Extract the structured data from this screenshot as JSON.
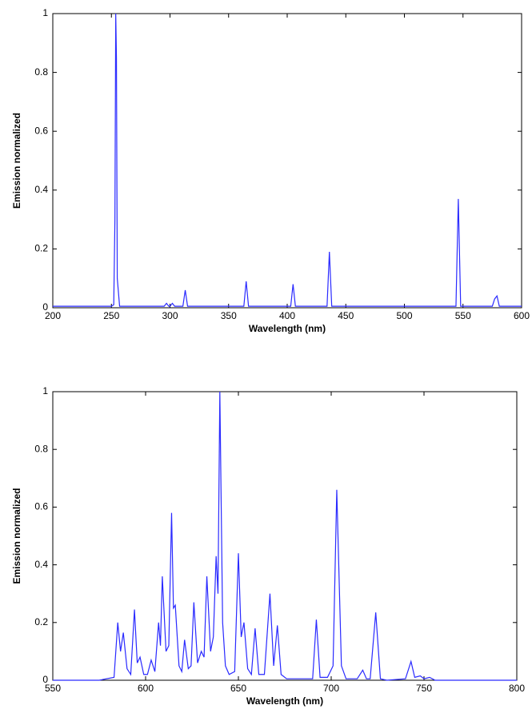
{
  "chart_data": [
    {
      "type": "line",
      "xlabel": "Wavelength (nm)",
      "ylabel": "Emission normalized",
      "xlim": [
        200,
        600
      ],
      "xticks": [
        200,
        250,
        300,
        350,
        400,
        450,
        500,
        550,
        600
      ],
      "ylim": [
        0,
        1
      ],
      "yticks": [
        0,
        0.2,
        0.4,
        0.6,
        0.8,
        1
      ],
      "series": [
        {
          "color": "#2a2aff",
          "x": [
            200,
            250,
            252,
            253,
            253.7,
            254.3,
            255,
            257,
            295,
            297,
            299,
            300,
            302,
            304,
            311,
            313,
            315,
            363,
            365,
            367,
            403,
            405,
            407,
            434,
            436,
            438,
            544,
            546,
            548,
            575,
            577,
            579,
            581,
            600
          ],
          "values": [
            0.005,
            0.005,
            0.01,
            0.3,
            1,
            0.85,
            0.1,
            0.005,
            0.005,
            0.015,
            0.005,
            0.005,
            0.015,
            0.005,
            0.005,
            0.06,
            0.005,
            0.005,
            0.09,
            0.005,
            0.005,
            0.08,
            0.005,
            0.005,
            0.19,
            0.005,
            0.005,
            0.37,
            0.005,
            0.005,
            0.03,
            0.04,
            0.005,
            0.005
          ]
        }
      ]
    },
    {
      "type": "line",
      "xlabel": "Wavelength (nm)",
      "ylabel": "Emission normalized",
      "xlim": [
        550,
        800
      ],
      "xticks": [
        550,
        600,
        650,
        700,
        750,
        800
      ],
      "ylim": [
        0,
        1
      ],
      "yticks": [
        0,
        0.2,
        0.4,
        0.6,
        0.8,
        1
      ],
      "series": [
        {
          "color": "#2a2aff",
          "x": [
            550,
            575,
            583,
            585,
            586.5,
            588,
            590,
            592,
            594,
            595.5,
            597,
            599,
            601,
            603,
            605,
            607,
            608,
            609,
            611,
            612.5,
            614,
            615,
            616,
            618,
            619.5,
            621,
            623,
            624.5,
            626,
            628,
            630,
            631.5,
            633,
            635,
            636.5,
            638,
            639,
            640,
            641.5,
            643,
            645,
            648,
            650,
            651.5,
            653,
            655,
            657,
            659,
            661,
            664,
            667,
            669,
            671,
            673,
            676,
            690,
            692,
            694,
            698,
            701,
            703,
            705.5,
            708,
            714,
            717,
            719,
            721,
            724,
            726.5,
            730,
            740,
            743,
            745,
            748,
            750,
            753,
            756,
            770,
            800
          ],
          "values": [
            0,
            0,
            0.01,
            0.2,
            0.1,
            0.165,
            0.04,
            0.02,
            0.245,
            0.06,
            0.08,
            0.02,
            0.02,
            0.07,
            0.03,
            0.2,
            0.12,
            0.36,
            0.1,
            0.12,
            0.58,
            0.25,
            0.26,
            0.05,
            0.03,
            0.14,
            0.04,
            0.05,
            0.27,
            0.06,
            0.1,
            0.08,
            0.36,
            0.1,
            0.15,
            0.43,
            0.3,
            1,
            0.2,
            0.05,
            0.02,
            0.03,
            0.44,
            0.15,
            0.2,
            0.04,
            0.02,
            0.18,
            0.02,
            0.02,
            0.3,
            0.05,
            0.19,
            0.02,
            0.005,
            0.005,
            0.21,
            0.01,
            0.01,
            0.05,
            0.66,
            0.05,
            0.005,
            0.005,
            0.035,
            0.005,
            0.005,
            0.235,
            0.005,
            0,
            0.005,
            0.065,
            0.01,
            0.015,
            0.005,
            0.01,
            0,
            0,
            0
          ]
        }
      ]
    }
  ]
}
